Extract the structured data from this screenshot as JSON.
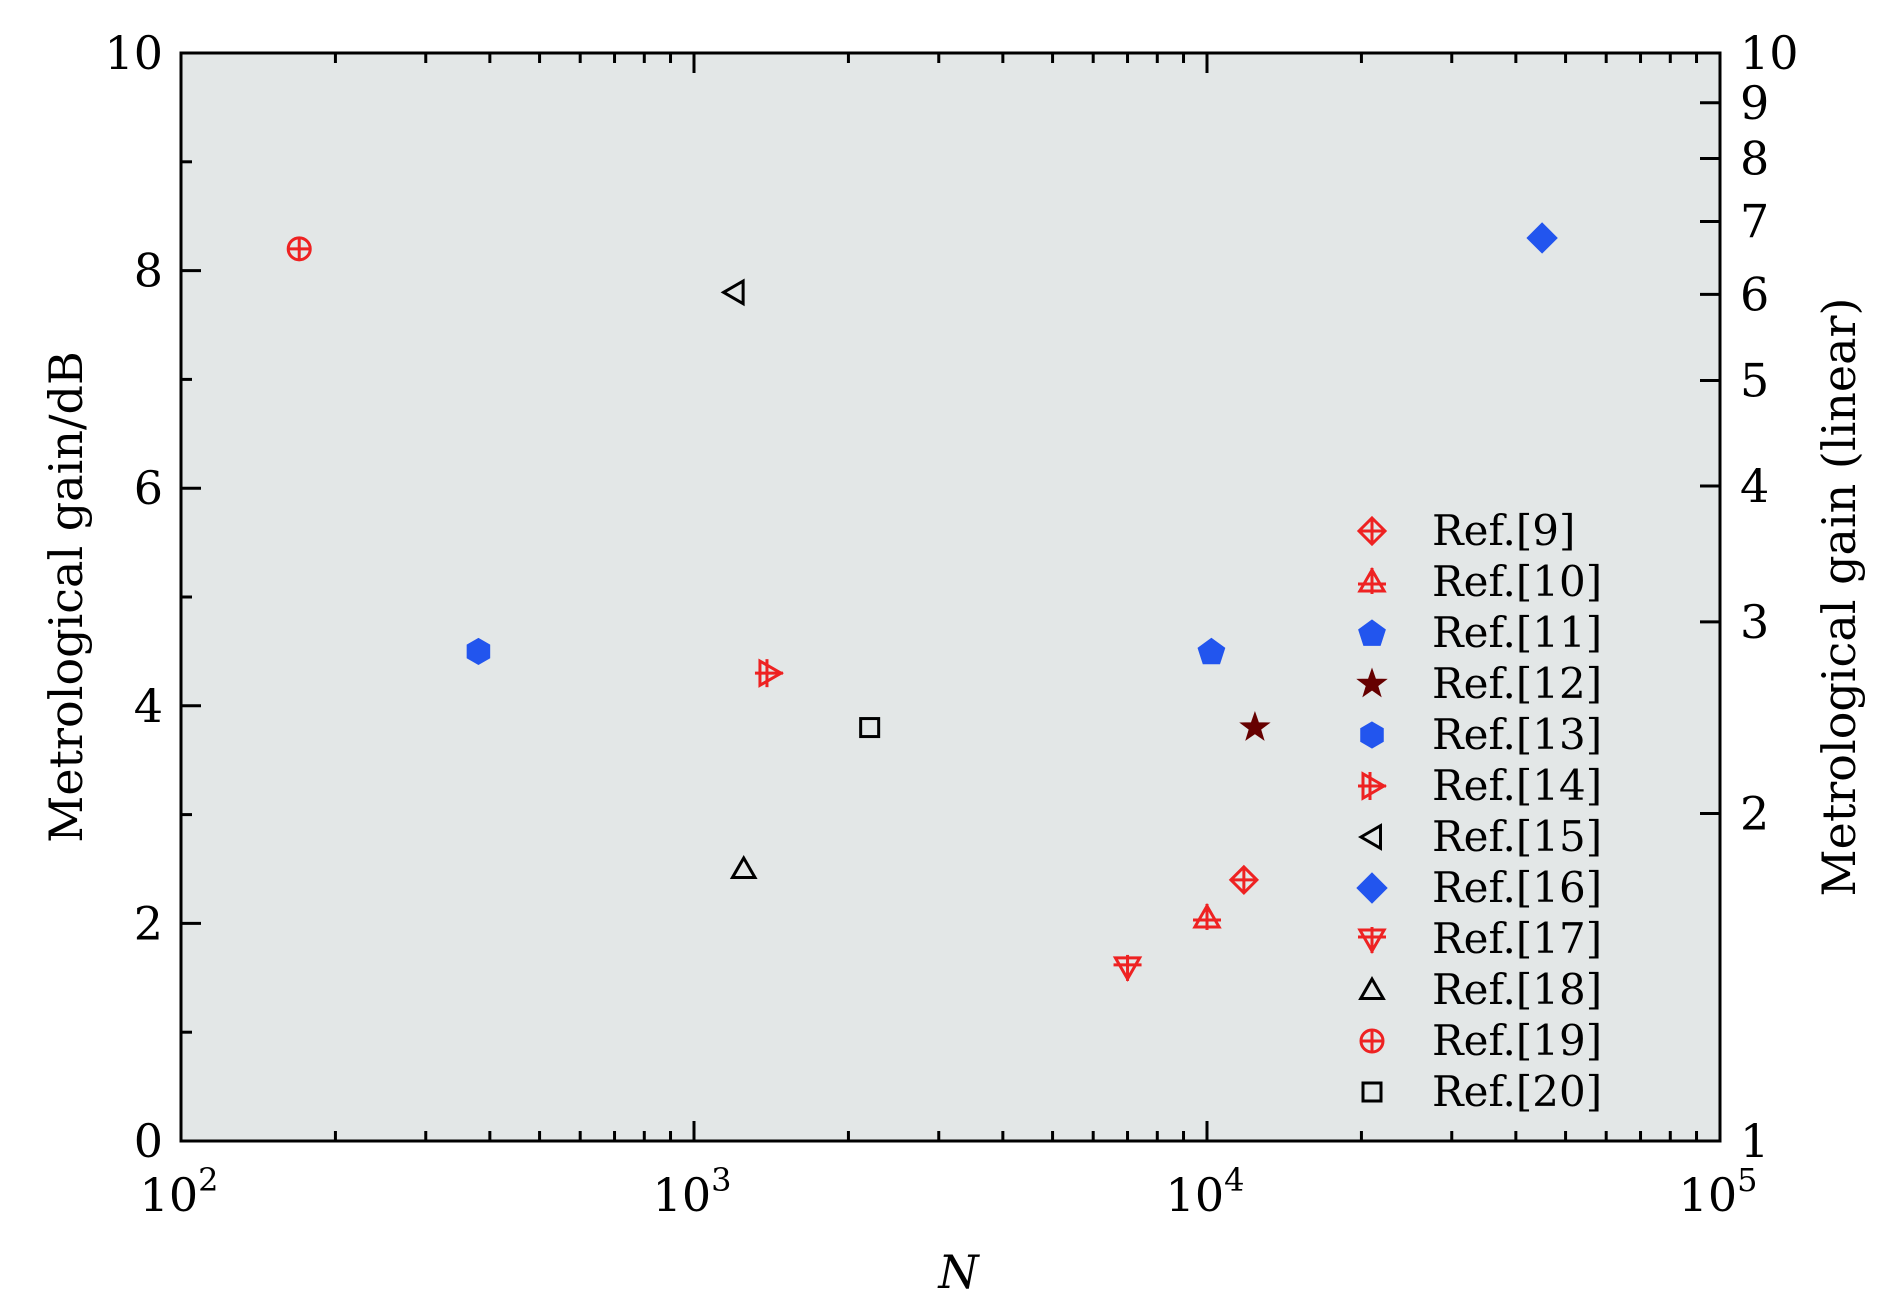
{
  "chart_data": {
    "type": "scatter",
    "xlabel": "N",
    "ylabel_left": "Metrological gain/dB",
    "ylabel_right": "Metrological gain (linear)",
    "xscale": "log",
    "xlim": [
      100,
      100000
    ],
    "ylim": [
      0,
      10
    ],
    "x_ticks": [
      {
        "value": 100,
        "base": "10",
        "exp": "2"
      },
      {
        "value": 1000,
        "base": "10",
        "exp": "3"
      },
      {
        "value": 10000,
        "base": "10",
        "exp": "4"
      },
      {
        "value": 100000,
        "base": "10",
        "exp": "5"
      }
    ],
    "y_ticks_left": [
      "0",
      "2",
      "4",
      "6",
      "8",
      "10"
    ],
    "y_ticks_right": [
      "1",
      "2",
      "3",
      "4",
      "5",
      "6",
      "7",
      "8",
      "9",
      "10"
    ],
    "background_color": "#e3e7e7",
    "grid": false,
    "legend_position": "lower-right",
    "series": [
      {
        "name": "Ref.[9]",
        "marker": "diamond-cross",
        "color": "#ee2222",
        "filled": false,
        "points": [
          {
            "x": 11800,
            "y": 2.4
          }
        ]
      },
      {
        "name": "Ref.[10]",
        "marker": "triangle-up-cross",
        "color": "#ee2222",
        "filled": false,
        "points": [
          {
            "x": 10000,
            "y": 2.05
          }
        ]
      },
      {
        "name": "Ref.[11]",
        "marker": "pentagon",
        "color": "#2255ee",
        "filled": true,
        "points": [
          {
            "x": 10200,
            "y": 4.5
          }
        ]
      },
      {
        "name": "Ref.[12]",
        "marker": "star",
        "color": "#660000",
        "filled": true,
        "points": [
          {
            "x": 12400,
            "y": 3.8
          }
        ]
      },
      {
        "name": "Ref.[13]",
        "marker": "hexagon",
        "color": "#2255ee",
        "filled": true,
        "points": [
          {
            "x": 380,
            "y": 4.5
          }
        ]
      },
      {
        "name": "Ref.[14]",
        "marker": "triangle-right-cross",
        "color": "#ee2222",
        "filled": false,
        "points": [
          {
            "x": 1400,
            "y": 4.3
          }
        ]
      },
      {
        "name": "Ref.[15]",
        "marker": "triangle-left",
        "color": "#000000",
        "filled": false,
        "points": [
          {
            "x": 1200,
            "y": 7.8
          }
        ]
      },
      {
        "name": "Ref.[16]",
        "marker": "diamond",
        "color": "#2255ee",
        "filled": true,
        "points": [
          {
            "x": 45000,
            "y": 8.3
          }
        ]
      },
      {
        "name": "Ref.[17]",
        "marker": "triangle-down-cross",
        "color": "#ee2222",
        "filled": false,
        "points": [
          {
            "x": 7000,
            "y": 1.6
          }
        ]
      },
      {
        "name": "Ref.[18]",
        "marker": "triangle-up",
        "color": "#000000",
        "filled": false,
        "points": [
          {
            "x": 1250,
            "y": 2.5
          }
        ]
      },
      {
        "name": "Ref.[19]",
        "marker": "circle-plus",
        "color": "#ee2222",
        "filled": false,
        "points": [
          {
            "x": 170,
            "y": 8.2
          }
        ]
      },
      {
        "name": "Ref.[20]",
        "marker": "square",
        "color": "#000000",
        "filled": false,
        "points": [
          {
            "x": 2200,
            "y": 3.8
          }
        ]
      }
    ]
  }
}
